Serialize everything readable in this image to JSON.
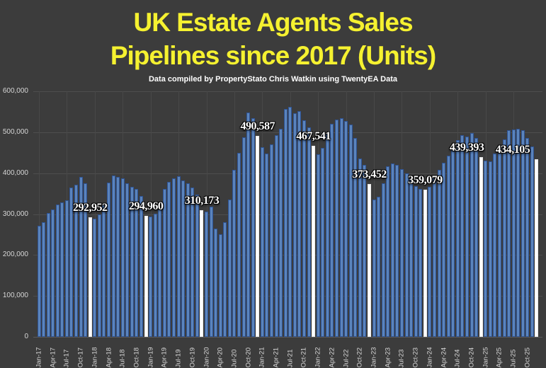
{
  "header": {
    "title_line1": "UK Estate Agents Sales",
    "title_line2": "Pipelines since 2017 (Units)",
    "subtitle": "Data compiled by PropertyStato Chris Watkin using TwentyEA Data"
  },
  "colors": {
    "background": "#3c3c3c",
    "title": "#f5f130",
    "subtitle": "#ffffff",
    "bar_fill": "#5b84bc",
    "bar_border": "#2e5394",
    "highlight_fill": "#ffffff",
    "highlight_border": "#e8e8e8",
    "gridline": "#4e4e4e",
    "axis_text": "#d6d6d6",
    "annotation_text": "#ffffff"
  },
  "chart_data": {
    "type": "bar",
    "title": "UK Estate Agents Sales Pipelines since 2017 (Units)",
    "xlabel": "",
    "ylabel": "",
    "ylim": [
      0,
      600000
    ],
    "ytick_step": 100000,
    "ytick_labels": [
      "0",
      "100,000",
      "200,000",
      "300,000",
      "400,000",
      "500,000",
      "600,000"
    ],
    "xtick_every": 3,
    "vertical_grid_every": 6,
    "legend": "none",
    "highlight_rule": "December bars shown in white",
    "months": [
      "Jan-17",
      "Feb-17",
      "Mar-17",
      "Apr-17",
      "May-17",
      "Jun-17",
      "Jul-17",
      "Aug-17",
      "Sep-17",
      "Oct-17",
      "Nov-17",
      "Dec-17",
      "Jan-18",
      "Feb-18",
      "Mar-18",
      "Apr-18",
      "May-18",
      "Jun-18",
      "Jul-18",
      "Aug-18",
      "Sep-18",
      "Oct-18",
      "Nov-18",
      "Dec-18",
      "Jan-19",
      "Feb-19",
      "Mar-19",
      "Apr-19",
      "May-19",
      "Jun-19",
      "Jul-19",
      "Aug-19",
      "Sep-19",
      "Oct-19",
      "Nov-19",
      "Dec-19",
      "Jan-20",
      "Feb-20",
      "Mar-20",
      "Apr-20",
      "May-20",
      "Jun-20",
      "Jul-20",
      "Aug-20",
      "Sep-20",
      "Oct-20",
      "Nov-20",
      "Dec-20",
      "Jan-21",
      "Feb-21",
      "Mar-21",
      "Apr-21",
      "May-21",
      "Jun-21",
      "Jul-21",
      "Aug-21",
      "Sep-21",
      "Oct-21",
      "Nov-21",
      "Dec-21",
      "Jan-22",
      "Feb-22",
      "Mar-22",
      "Apr-22",
      "May-22",
      "Jun-22",
      "Jul-22",
      "Aug-22",
      "Sep-22",
      "Oct-22",
      "Nov-22",
      "Dec-22",
      "Jan-23",
      "Feb-23",
      "Mar-23",
      "Apr-23",
      "May-23",
      "Jun-23",
      "Jul-23",
      "Aug-23",
      "Sep-23",
      "Oct-23",
      "Nov-23",
      "Dec-23",
      "Jan-24",
      "Feb-24",
      "Mar-24",
      "Apr-24",
      "May-24",
      "Jun-24",
      "Jul-24",
      "Aug-24",
      "Sep-24",
      "Oct-24",
      "Nov-24",
      "Dec-24",
      "Jan-25",
      "Feb-25",
      "Mar-25",
      "Apr-25",
      "May-25",
      "Jun-25",
      "Jul-25",
      "Aug-25",
      "Sep-25",
      "Oct-25",
      "Nov-25",
      "Dec-25"
    ],
    "values": [
      271000,
      281000,
      303000,
      311000,
      323000,
      328000,
      334000,
      365000,
      372000,
      390000,
      375000,
      292952,
      289000,
      299000,
      323000,
      377000,
      395000,
      390000,
      387000,
      375000,
      367000,
      361000,
      344000,
      294960,
      294000,
      301000,
      319000,
      362000,
      379000,
      388000,
      392000,
      382000,
      376000,
      365000,
      348000,
      310173,
      306000,
      319000,
      264000,
      250000,
      281000,
      336000,
      408000,
      450000,
      487000,
      549000,
      535000,
      490587,
      463000,
      448000,
      471000,
      493000,
      509000,
      556000,
      562000,
      546000,
      552000,
      529000,
      512000,
      467541,
      447000,
      462000,
      495000,
      520000,
      530000,
      534000,
      528000,
      518000,
      486000,
      436000,
      421000,
      373452,
      336000,
      342000,
      375000,
      417000,
      424000,
      420000,
      409000,
      399000,
      385000,
      369000,
      362000,
      359079,
      366000,
      388000,
      408000,
      425000,
      443000,
      460000,
      480000,
      492000,
      489000,
      498000,
      486000,
      439393,
      431000,
      428000,
      448000,
      467000,
      483000,
      505000,
      507000,
      509000,
      505000,
      486000,
      466000,
      434105
    ],
    "annotations": [
      {
        "month": "Dec-17",
        "text": "292,952",
        "dx": 0
      },
      {
        "month": "Dec-18",
        "text": "294,960",
        "dx": 0
      },
      {
        "month": "Dec-19",
        "text": "310,173",
        "dx": 0
      },
      {
        "month": "Dec-20",
        "text": "490,587",
        "dx": 0
      },
      {
        "month": "Dec-21",
        "text": "467,541",
        "dx": 0
      },
      {
        "month": "Dec-22",
        "text": "373,452",
        "dx": 0
      },
      {
        "month": "Dec-23",
        "text": "359,079",
        "dx": 0
      },
      {
        "month": "Dec-24",
        "text": "439,393",
        "dx": -20
      },
      {
        "month": "Dec-25",
        "text": "434,105",
        "dx": -34
      }
    ]
  }
}
